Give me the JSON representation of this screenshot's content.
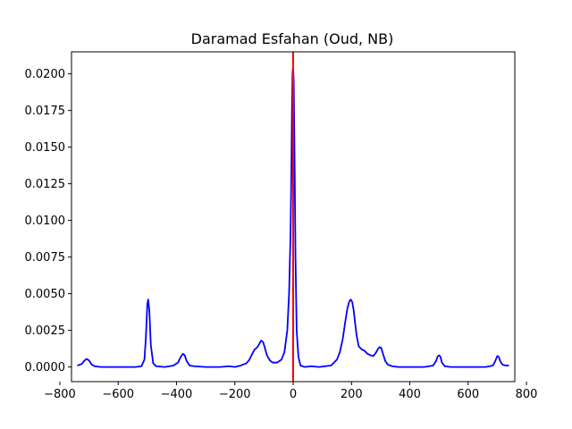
{
  "chart_data": {
    "type": "line",
    "title": "Daramad Esfahan (Oud, NB)",
    "xlabel": "",
    "ylabel": "",
    "xlim": [
      -760,
      760
    ],
    "ylim": [
      -0.001,
      0.0215
    ],
    "x_ticks": [
      -800,
      -600,
      -400,
      -200,
      0,
      200,
      400,
      600,
      800
    ],
    "x_tick_labels": [
      "−800",
      "−600",
      "−400",
      "−200",
      "0",
      "200",
      "400",
      "600",
      "800"
    ],
    "y_ticks": [
      0.0,
      0.0025,
      0.005,
      0.0075,
      0.01,
      0.0125,
      0.015,
      0.0175,
      0.02
    ],
    "y_tick_labels": [
      "0.0000",
      "0.0025",
      "0.0050",
      "0.0075",
      "0.0100",
      "0.0125",
      "0.0150",
      "0.0175",
      "0.0200"
    ],
    "grid": false,
    "series": [
      {
        "color": "#0000ff",
        "x": [
          -740,
          -725,
          -715,
          -708,
          -700,
          -690,
          -680,
          -660,
          -600,
          -540,
          -520,
          -510,
          -505,
          -500,
          -497,
          -493,
          -488,
          -480,
          -470,
          -440,
          -410,
          -395,
          -385,
          -378,
          -372,
          -365,
          -355,
          -340,
          -300,
          -250,
          -220,
          -200,
          -180,
          -160,
          -150,
          -140,
          -132,
          -125,
          -118,
          -110,
          -103,
          -97,
          -90,
          -80,
          -70,
          -55,
          -40,
          -30,
          -20,
          -14,
          -9,
          -6,
          -4,
          -2,
          0,
          2,
          5,
          8,
          12,
          18,
          25,
          40,
          60,
          90,
          110,
          130,
          150,
          160,
          170,
          178,
          186,
          193,
          198,
          203,
          208,
          213,
          218,
          225,
          235,
          245,
          255,
          265,
          275,
          283,
          290,
          296,
          302,
          308,
          316,
          325,
          340,
          360,
          400,
          450,
          480,
          490,
          495,
          500,
          505,
          510,
          520,
          540,
          600,
          660,
          685,
          693,
          700,
          705,
          710,
          718,
          730,
          740
        ],
        "y": [
          0.0001,
          0.0002,
          0.00045,
          0.00055,
          0.00045,
          0.00015,
          5e-05,
          0.0,
          0.0,
          0.0,
          5e-05,
          0.0005,
          0.002,
          0.0043,
          0.0046,
          0.0038,
          0.0015,
          0.00025,
          5e-05,
          0.0,
          0.0001,
          0.0003,
          0.0007,
          0.0009,
          0.0008,
          0.0004,
          0.0001,
          5e-05,
          0.0,
          0.0,
          5e-05,
          0.0,
          0.0001,
          0.00025,
          0.0005,
          0.0009,
          0.0012,
          0.0013,
          0.0015,
          0.0018,
          0.0017,
          0.0013,
          0.0008,
          0.00045,
          0.0003,
          0.0003,
          0.0005,
          0.001,
          0.0025,
          0.005,
          0.009,
          0.0135,
          0.0175,
          0.0201,
          0.0205,
          0.0195,
          0.014,
          0.0075,
          0.0025,
          0.0007,
          0.0001,
          0.0,
          5e-05,
          0.0,
          5e-05,
          0.0001,
          0.0005,
          0.001,
          0.0019,
          0.003,
          0.004,
          0.0045,
          0.0046,
          0.0044,
          0.0038,
          0.0029,
          0.0021,
          0.0014,
          0.0012,
          0.0011,
          0.0009,
          0.0008,
          0.00075,
          0.00095,
          0.0012,
          0.00135,
          0.0013,
          0.0009,
          0.0004,
          0.00015,
          5e-05,
          0.0,
          0.0,
          0.0,
          0.0001,
          0.0004,
          0.0007,
          0.0008,
          0.0007,
          0.0003,
          5e-05,
          0.0,
          0.0,
          0.0,
          0.0001,
          0.0004,
          0.00075,
          0.0007,
          0.0004,
          0.00015,
          0.0001,
          0.0001
        ]
      }
    ],
    "reference_lines": [
      {
        "orientation": "vertical",
        "x": 0,
        "color": "#ff0000"
      }
    ]
  }
}
